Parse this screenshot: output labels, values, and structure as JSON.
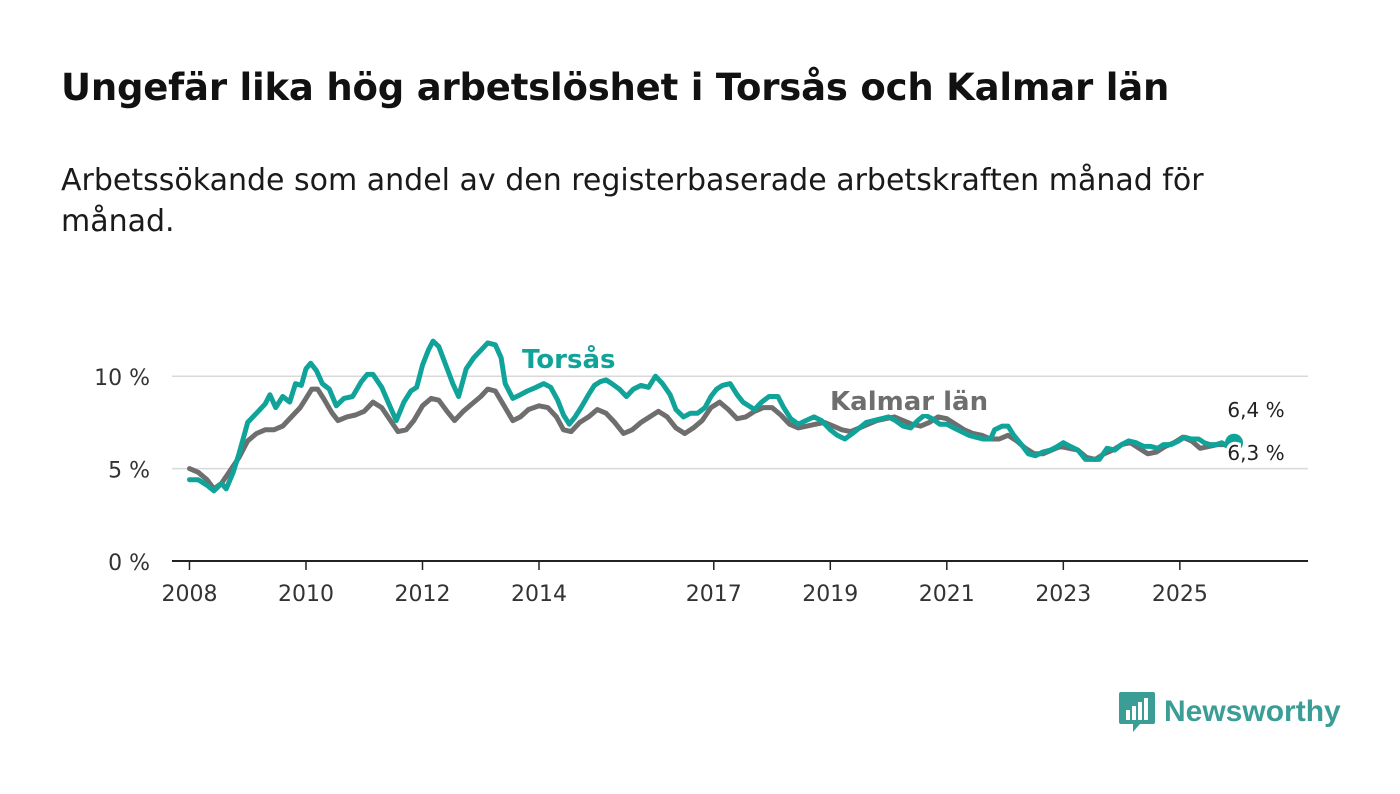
{
  "title": "Ungefär lika hög arbetslöshet i Torsås och Kalmar län",
  "subtitle": "Arbetssökande som andel av den registerbaserade arbetskraften månad för månad.",
  "colors": {
    "torsas": "#10a39a",
    "kalmar": "#6f6e6f",
    "grid": "#d9d9d9",
    "axis": "#222222",
    "brand": "#3a9e96"
  },
  "brand": {
    "name": "Newsworthy",
    "icon": "bar-chart-icon"
  },
  "chart_data": {
    "type": "line",
    "title": "Ungefär lika hög arbetslöshet i Torsås och Kalmar län",
    "xlabel": "",
    "ylabel": "",
    "xlim": [
      2007.7,
      2027.2
    ],
    "ylim": [
      0,
      12.5
    ],
    "x_ticks": [
      {
        "value": 2008,
        "label": "2008"
      },
      {
        "value": 2010,
        "label": "2010"
      },
      {
        "value": 2012,
        "label": "2012"
      },
      {
        "value": 2014,
        "label": "2014"
      },
      {
        "value": 2017,
        "label": "2017"
      },
      {
        "value": 2019,
        "label": "2019"
      },
      {
        "value": 2021,
        "label": "2021"
      },
      {
        "value": 2023,
        "label": "2023"
      },
      {
        "value": 2025,
        "label": "2025"
      }
    ],
    "y_ticks": [
      {
        "value": 0,
        "label": "0 %"
      },
      {
        "value": 5,
        "label": "5 %"
      },
      {
        "value": 10,
        "label": "10 %"
      }
    ],
    "grid": true,
    "series": [
      {
        "name": "Kalmar län",
        "label": "Kalmar län",
        "last_value_label": "6,3 %",
        "last_value": 6.3,
        "points": [
          [
            2008.0,
            5.0
          ],
          [
            2008.15,
            4.8
          ],
          [
            2008.3,
            4.4
          ],
          [
            2008.42,
            3.9
          ],
          [
            2008.55,
            4.2
          ],
          [
            2008.7,
            4.9
          ],
          [
            2008.85,
            5.6
          ],
          [
            2009.0,
            6.5
          ],
          [
            2009.15,
            6.9
          ],
          [
            2009.3,
            7.1
          ],
          [
            2009.45,
            7.1
          ],
          [
            2009.6,
            7.3
          ],
          [
            2009.75,
            7.8
          ],
          [
            2009.9,
            8.3
          ],
          [
            2010.0,
            8.8
          ],
          [
            2010.1,
            9.3
          ],
          [
            2010.2,
            9.3
          ],
          [
            2010.32,
            8.7
          ],
          [
            2010.45,
            8.0
          ],
          [
            2010.55,
            7.6
          ],
          [
            2010.7,
            7.8
          ],
          [
            2010.85,
            7.9
          ],
          [
            2011.0,
            8.1
          ],
          [
            2011.15,
            8.6
          ],
          [
            2011.3,
            8.3
          ],
          [
            2011.45,
            7.6
          ],
          [
            2011.58,
            7.0
          ],
          [
            2011.72,
            7.1
          ],
          [
            2011.85,
            7.6
          ],
          [
            2012.0,
            8.4
          ],
          [
            2012.15,
            8.8
          ],
          [
            2012.28,
            8.7
          ],
          [
            2012.42,
            8.1
          ],
          [
            2012.55,
            7.6
          ],
          [
            2012.7,
            8.1
          ],
          [
            2012.85,
            8.5
          ],
          [
            2013.0,
            8.9
          ],
          [
            2013.12,
            9.3
          ],
          [
            2013.25,
            9.2
          ],
          [
            2013.4,
            8.4
          ],
          [
            2013.55,
            7.6
          ],
          [
            2013.68,
            7.8
          ],
          [
            2013.82,
            8.2
          ],
          [
            2014.0,
            8.4
          ],
          [
            2014.15,
            8.3
          ],
          [
            2014.3,
            7.8
          ],
          [
            2014.42,
            7.1
          ],
          [
            2014.55,
            7.0
          ],
          [
            2014.7,
            7.5
          ],
          [
            2014.85,
            7.8
          ],
          [
            2015.0,
            8.2
          ],
          [
            2015.15,
            8.0
          ],
          [
            2015.3,
            7.5
          ],
          [
            2015.45,
            6.9
          ],
          [
            2015.6,
            7.1
          ],
          [
            2015.75,
            7.5
          ],
          [
            2015.9,
            7.8
          ],
          [
            2016.05,
            8.1
          ],
          [
            2016.2,
            7.8
          ],
          [
            2016.35,
            7.2
          ],
          [
            2016.5,
            6.9
          ],
          [
            2016.65,
            7.2
          ],
          [
            2016.8,
            7.6
          ],
          [
            2016.95,
            8.3
          ],
          [
            2017.1,
            8.6
          ],
          [
            2017.25,
            8.2
          ],
          [
            2017.4,
            7.7
          ],
          [
            2017.55,
            7.8
          ],
          [
            2017.7,
            8.1
          ],
          [
            2017.85,
            8.3
          ],
          [
            2018.0,
            8.3
          ],
          [
            2018.15,
            7.9
          ],
          [
            2018.3,
            7.4
          ],
          [
            2018.45,
            7.2
          ],
          [
            2018.6,
            7.3
          ],
          [
            2018.75,
            7.4
          ],
          [
            2018.9,
            7.5
          ],
          [
            2019.05,
            7.3
          ],
          [
            2019.2,
            7.1
          ],
          [
            2019.35,
            7.0
          ],
          [
            2019.5,
            7.2
          ],
          [
            2019.65,
            7.4
          ],
          [
            2019.8,
            7.6
          ],
          [
            2019.95,
            7.7
          ],
          [
            2020.1,
            7.8
          ],
          [
            2020.25,
            7.6
          ],
          [
            2020.4,
            7.4
          ],
          [
            2020.55,
            7.3
          ],
          [
            2020.7,
            7.5
          ],
          [
            2020.85,
            7.8
          ],
          [
            2021.0,
            7.7
          ],
          [
            2021.15,
            7.4
          ],
          [
            2021.3,
            7.1
          ],
          [
            2021.45,
            6.9
          ],
          [
            2021.6,
            6.8
          ],
          [
            2021.75,
            6.6
          ],
          [
            2021.9,
            6.6
          ],
          [
            2022.05,
            6.8
          ],
          [
            2022.2,
            6.5
          ],
          [
            2022.35,
            6.1
          ],
          [
            2022.5,
            5.8
          ],
          [
            2022.65,
            5.8
          ],
          [
            2022.8,
            6.0
          ],
          [
            2022.95,
            6.2
          ],
          [
            2023.1,
            6.1
          ],
          [
            2023.25,
            6.0
          ],
          [
            2023.4,
            5.6
          ],
          [
            2023.55,
            5.5
          ],
          [
            2023.7,
            5.8
          ],
          [
            2023.85,
            6.0
          ],
          [
            2024.0,
            6.3
          ],
          [
            2024.15,
            6.4
          ],
          [
            2024.3,
            6.1
          ],
          [
            2024.45,
            5.8
          ],
          [
            2024.6,
            5.9
          ],
          [
            2024.75,
            6.2
          ],
          [
            2024.9,
            6.4
          ],
          [
            2025.05,
            6.7
          ],
          [
            2025.2,
            6.5
          ],
          [
            2025.35,
            6.1
          ],
          [
            2025.5,
            6.2
          ],
          [
            2025.65,
            6.3
          ],
          [
            2025.75,
            6.3
          ],
          [
            2025.93,
            6.3
          ]
        ]
      },
      {
        "name": "Torsås",
        "label": "Torsås",
        "last_value_label": "6,4 %",
        "last_value": 6.4,
        "points": [
          [
            2008.0,
            4.4
          ],
          [
            2008.15,
            4.4
          ],
          [
            2008.3,
            4.1
          ],
          [
            2008.42,
            3.8
          ],
          [
            2008.55,
            4.2
          ],
          [
            2008.63,
            3.9
          ],
          [
            2008.75,
            4.8
          ],
          [
            2008.85,
            5.8
          ],
          [
            2009.0,
            7.5
          ],
          [
            2009.15,
            8.0
          ],
          [
            2009.3,
            8.5
          ],
          [
            2009.38,
            9.0
          ],
          [
            2009.48,
            8.3
          ],
          [
            2009.6,
            8.9
          ],
          [
            2009.72,
            8.6
          ],
          [
            2009.82,
            9.6
          ],
          [
            2009.92,
            9.5
          ],
          [
            2010.0,
            10.4
          ],
          [
            2010.08,
            10.7
          ],
          [
            2010.18,
            10.3
          ],
          [
            2010.28,
            9.6
          ],
          [
            2010.4,
            9.3
          ],
          [
            2010.52,
            8.4
          ],
          [
            2010.65,
            8.8
          ],
          [
            2010.8,
            8.9
          ],
          [
            2010.95,
            9.7
          ],
          [
            2011.05,
            10.1
          ],
          [
            2011.15,
            10.1
          ],
          [
            2011.3,
            9.4
          ],
          [
            2011.45,
            8.3
          ],
          [
            2011.55,
            7.6
          ],
          [
            2011.68,
            8.6
          ],
          [
            2011.8,
            9.2
          ],
          [
            2011.9,
            9.4
          ],
          [
            2012.0,
            10.6
          ],
          [
            2012.1,
            11.4
          ],
          [
            2012.18,
            11.9
          ],
          [
            2012.28,
            11.6
          ],
          [
            2012.4,
            10.6
          ],
          [
            2012.52,
            9.6
          ],
          [
            2012.62,
            8.9
          ],
          [
            2012.75,
            10.4
          ],
          [
            2012.88,
            11.0
          ],
          [
            2013.0,
            11.4
          ],
          [
            2013.12,
            11.8
          ],
          [
            2013.25,
            11.7
          ],
          [
            2013.35,
            11.0
          ],
          [
            2013.42,
            9.6
          ],
          [
            2013.55,
            8.8
          ],
          [
            2013.68,
            9.0
          ],
          [
            2013.8,
            9.2
          ],
          [
            2013.95,
            9.4
          ],
          [
            2014.08,
            9.6
          ],
          [
            2014.2,
            9.4
          ],
          [
            2014.32,
            8.7
          ],
          [
            2014.42,
            7.9
          ],
          [
            2014.52,
            7.4
          ],
          [
            2014.62,
            7.8
          ],
          [
            2014.72,
            8.3
          ],
          [
            2014.85,
            9.0
          ],
          [
            2014.95,
            9.5
          ],
          [
            2015.05,
            9.7
          ],
          [
            2015.15,
            9.8
          ],
          [
            2015.25,
            9.6
          ],
          [
            2015.38,
            9.3
          ],
          [
            2015.5,
            8.9
          ],
          [
            2015.62,
            9.3
          ],
          [
            2015.75,
            9.5
          ],
          [
            2015.88,
            9.4
          ],
          [
            2016.0,
            10.0
          ],
          [
            2016.12,
            9.6
          ],
          [
            2016.25,
            9.0
          ],
          [
            2016.35,
            8.2
          ],
          [
            2016.48,
            7.8
          ],
          [
            2016.6,
            8.0
          ],
          [
            2016.72,
            8.0
          ],
          [
            2016.85,
            8.3
          ],
          [
            2016.95,
            8.9
          ],
          [
            2017.05,
            9.3
          ],
          [
            2017.15,
            9.5
          ],
          [
            2017.28,
            9.6
          ],
          [
            2017.4,
            9.0
          ],
          [
            2017.5,
            8.6
          ],
          [
            2017.6,
            8.4
          ],
          [
            2017.7,
            8.2
          ],
          [
            2017.82,
            8.6
          ],
          [
            2017.95,
            8.9
          ],
          [
            2018.1,
            8.9
          ],
          [
            2018.2,
            8.3
          ],
          [
            2018.32,
            7.7
          ],
          [
            2018.45,
            7.4
          ],
          [
            2018.58,
            7.6
          ],
          [
            2018.72,
            7.8
          ],
          [
            2018.85,
            7.6
          ],
          [
            2019.0,
            7.1
          ],
          [
            2019.12,
            6.8
          ],
          [
            2019.25,
            6.6
          ],
          [
            2019.38,
            6.9
          ],
          [
            2019.5,
            7.2
          ],
          [
            2019.62,
            7.5
          ],
          [
            2019.75,
            7.6
          ],
          [
            2019.88,
            7.7
          ],
          [
            2020.0,
            7.8
          ],
          [
            2020.12,
            7.6
          ],
          [
            2020.25,
            7.3
          ],
          [
            2020.38,
            7.2
          ],
          [
            2020.5,
            7.6
          ],
          [
            2020.62,
            7.9
          ],
          [
            2020.75,
            7.7
          ],
          [
            2020.88,
            7.4
          ],
          [
            2021.0,
            7.4
          ],
          [
            2021.12,
            7.2
          ],
          [
            2021.25,
            7.0
          ],
          [
            2021.38,
            6.8
          ],
          [
            2021.5,
            6.7
          ],
          [
            2021.62,
            6.6
          ],
          [
            2021.75,
            6.6
          ],
          [
            2021.82,
            7.1
          ],
          [
            2021.95,
            7.3
          ],
          [
            2022.05,
            7.3
          ],
          [
            2022.15,
            6.8
          ],
          [
            2022.28,
            6.3
          ],
          [
            2022.4,
            5.8
          ],
          [
            2022.52,
            5.7
          ],
          [
            2022.65,
            5.9
          ],
          [
            2022.78,
            6.0
          ],
          [
            2022.9,
            6.2
          ],
          [
            2023.0,
            6.4
          ],
          [
            2023.12,
            6.2
          ],
          [
            2023.25,
            6.0
          ],
          [
            2023.38,
            5.5
          ],
          [
            2023.5,
            5.5
          ],
          [
            2023.62,
            5.5
          ],
          [
            2023.75,
            6.1
          ],
          [
            2023.88,
            6.0
          ],
          [
            2024.0,
            6.3
          ],
          [
            2024.12,
            6.5
          ],
          [
            2024.25,
            6.4
          ],
          [
            2024.38,
            6.2
          ],
          [
            2024.5,
            6.2
          ],
          [
            2024.62,
            6.1
          ],
          [
            2024.72,
            6.3
          ],
          [
            2024.85,
            6.3
          ],
          [
            2024.98,
            6.5
          ],
          [
            2025.08,
            6.7
          ],
          [
            2025.2,
            6.6
          ],
          [
            2025.32,
            6.6
          ],
          [
            2025.42,
            6.4
          ],
          [
            2025.52,
            6.3
          ],
          [
            2025.62,
            6.3
          ],
          [
            2025.72,
            6.4
          ],
          [
            2025.82,
            6.2
          ],
          [
            2025.93,
            6.4
          ]
        ]
      }
    ]
  }
}
